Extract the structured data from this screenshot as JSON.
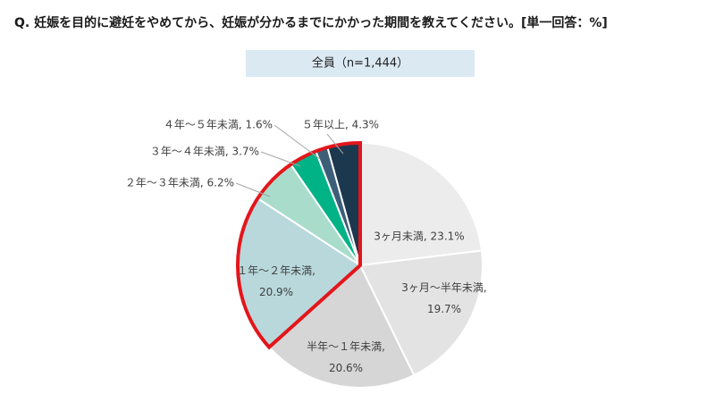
{
  "chart_data": {
    "type": "pie",
    "title": "Q. 妊娠を目的に避妊をやめてから、妊娠が分かるまでにかかった期間を教えてください。[単一回答：%]",
    "subtitle": "全員（n=1,444）",
    "values": [
      23.1,
      19.7,
      20.6,
      20.9,
      6.2,
      3.7,
      1.6,
      4.3
    ],
    "value_labels": [
      "3ヶ月未満, 23.1%",
      "3ヶ月～半年未満,\n19.7%",
      "半年～１年未満,\n20.6%",
      "１年～２年未満,\n20.9%",
      "２年～３年未満, 6.2%",
      "３年～４年未満, 3.7%",
      "４年～５年未満, 1.6%",
      "５年以上, 4.3%"
    ],
    "colors": [
      "#ececec",
      "#e3e3e3",
      "#d6d6d6",
      "#b8d8dc",
      "#a9dccb",
      "#00b386",
      "#3d5e78",
      "#1c384e"
    ]
  }
}
